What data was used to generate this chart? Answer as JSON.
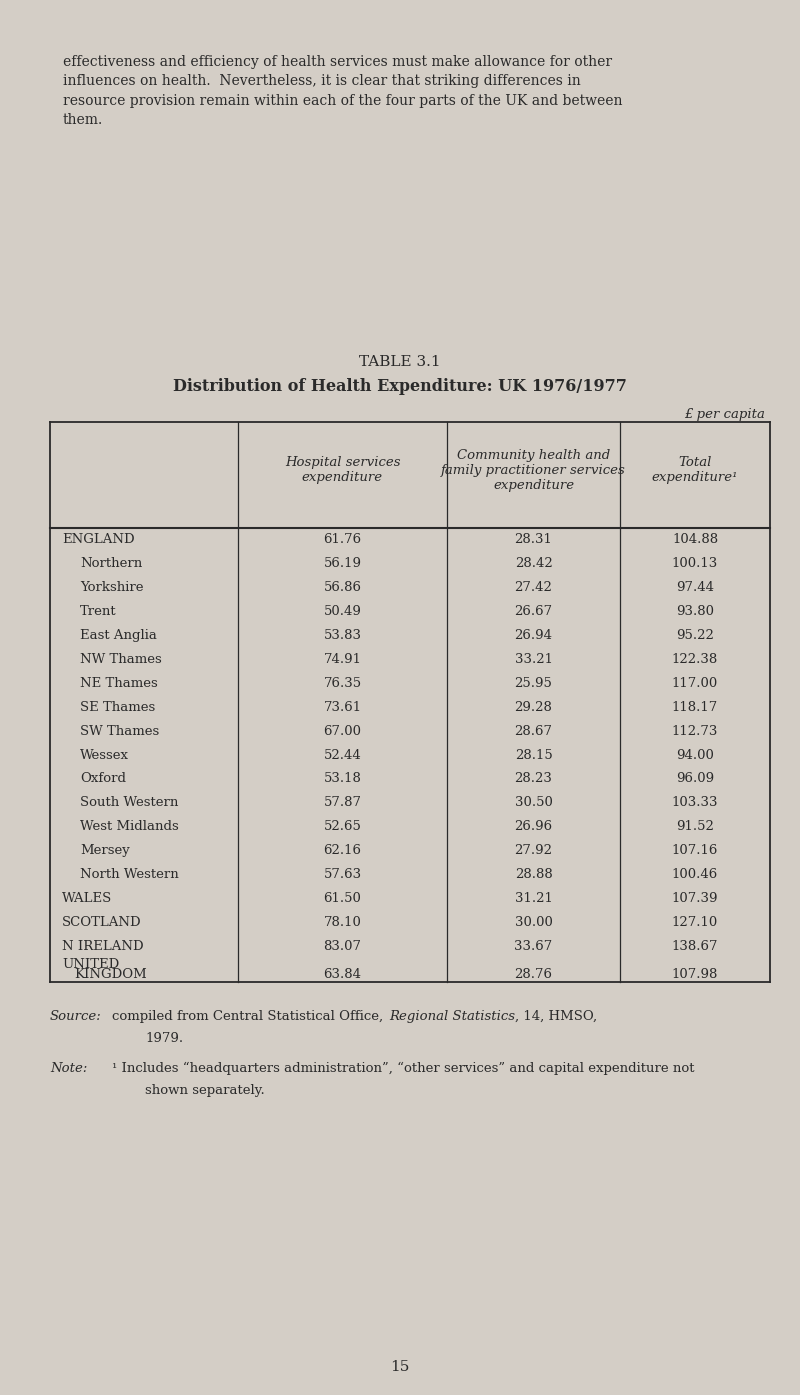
{
  "bg_color": "#d4cec6",
  "text_color": "#2a2a2a",
  "intro_text_lines": [
    "effectiveness and efficiency of health services must make allowance for other",
    "influences on health.  Nevertheless, it is clear that striking differences in",
    "resource provision remain within each of the four parts of the UK and between",
    "them."
  ],
  "table_title1": "TABLE 3.1",
  "table_title2": "Distribution of Health Expenditure: UK 1976/1977",
  "unit_label": "£ per capita",
  "col_headers": [
    "Hospital services\nexpenditure",
    "Community health and\nfamily practitioner services\nexpenditure",
    "Total\nexpenditure¹"
  ],
  "rows": [
    [
      "ENGLAND",
      61.76,
      28.31,
      104.88,
      false
    ],
    [
      "Northern",
      56.19,
      28.42,
      100.13,
      true
    ],
    [
      "Yorkshire",
      56.86,
      27.42,
      97.44,
      true
    ],
    [
      "Trent",
      50.49,
      26.67,
      93.8,
      true
    ],
    [
      "East Anglia",
      53.83,
      26.94,
      95.22,
      true
    ],
    [
      "NW Thames",
      74.91,
      33.21,
      122.38,
      true
    ],
    [
      "NE Thames",
      76.35,
      25.95,
      117.0,
      true
    ],
    [
      "SE Thames",
      73.61,
      29.28,
      118.17,
      true
    ],
    [
      "SW Thames",
      67.0,
      28.67,
      112.73,
      true
    ],
    [
      "Wessex",
      52.44,
      28.15,
      94.0,
      true
    ],
    [
      "Oxford",
      53.18,
      28.23,
      96.09,
      true
    ],
    [
      "South Western",
      57.87,
      30.5,
      103.33,
      true
    ],
    [
      "West Midlands",
      52.65,
      26.96,
      91.52,
      true
    ],
    [
      "Mersey",
      62.16,
      27.92,
      107.16,
      true
    ],
    [
      "North Western",
      57.63,
      28.88,
      100.46,
      true
    ],
    [
      "WALES",
      61.5,
      31.21,
      107.39,
      false
    ],
    [
      "SCOTLAND",
      78.1,
      30.0,
      127.1,
      false
    ],
    [
      "N IRELAND",
      83.07,
      33.67,
      138.67,
      false
    ],
    [
      "UNITED\nKINGDOM",
      63.84,
      28.76,
      107.98,
      false
    ]
  ],
  "page_number": "15",
  "fig_width": 8.0,
  "fig_height": 13.95,
  "dpi": 100
}
